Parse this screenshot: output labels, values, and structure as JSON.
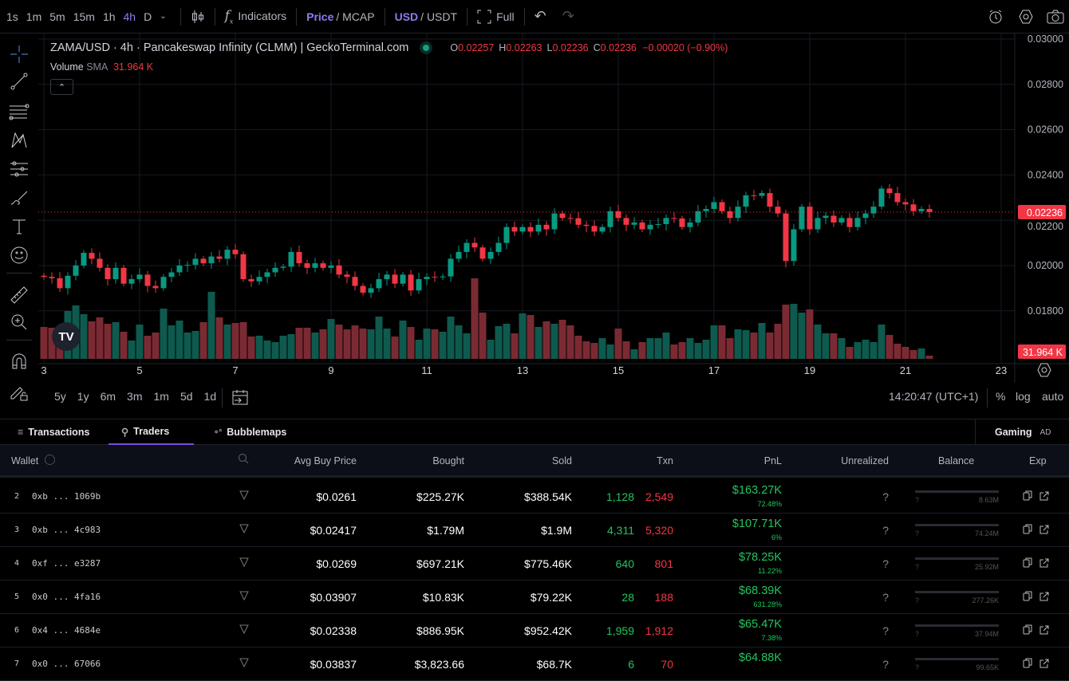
{
  "toolbar": {
    "timeframes": [
      "1s",
      "1m",
      "5m",
      "15m",
      "1h",
      "4h",
      "D"
    ],
    "active_timeframe": "4h",
    "indicators": "Indicators",
    "price": "Price",
    "mcap": "/ MCAP",
    "usd": "USD",
    "usdt": "/ USDT",
    "full": "Full",
    "slash": "/"
  },
  "legend": {
    "title": "ZAMA/USD · 4h · Pancakeswap Infinity (CLMM) | GeckoTerminal.com",
    "o_label": "O",
    "o": "0.02257",
    "h_label": "H",
    "h": "0.02263",
    "l_label": "L",
    "l": "0.02236",
    "c_label": "C",
    "c": "0.02236",
    "change": "−0.00020 (−0.90%)",
    "volume_label": "Volume",
    "sma_label": "SMA",
    "sma_value": "31.964 K"
  },
  "price_axis": {
    "labels": [
      "0.03000",
      "0.02800",
      "0.02600",
      "0.02400",
      "0.02200",
      "0.02000",
      "0.01800"
    ],
    "current_price": "0.02236",
    "volume_label": "31.964 K"
  },
  "time_axis": {
    "labels": [
      "3",
      "5",
      "7",
      "9",
      "11",
      "13",
      "15",
      "17",
      "19",
      "21",
      "23"
    ]
  },
  "ranges": [
    "5y",
    "1y",
    "6m",
    "3m",
    "1m",
    "5d",
    "1d"
  ],
  "status": {
    "time": "14:20:47 (UTC+1)",
    "pct": "%",
    "log": "log",
    "auto": "auto"
  },
  "chart_data": {
    "type": "candlestick",
    "title": "ZAMA/USD · 4h",
    "interval_hours": 4,
    "start_day": 3,
    "ylim": [
      0.0178,
      0.0302
    ],
    "colors": {
      "up": "#089981",
      "down": "#f23645",
      "vol_up": "#0e5a4e",
      "vol_down": "#7b2a33"
    },
    "close": [
      0.0195,
      0.01944,
      0.019,
      0.01955,
      0.02,
      0.02056,
      0.0203,
      0.0199,
      0.0194,
      0.0199,
      0.0192,
      0.0194,
      0.0196,
      0.0191,
      0.019,
      0.0195,
      0.0197,
      0.02,
      0.02003,
      0.0203,
      0.0201,
      0.0204,
      0.0203,
      0.0207,
      0.0205,
      0.0194,
      0.0193,
      0.0195,
      0.0197,
      0.0199,
      0.01995,
      0.0206,
      0.0201,
      0.0199,
      0.0201,
      0.0199,
      0.02,
      0.0196,
      0.0195,
      0.0191,
      0.0188,
      0.019,
      0.0194,
      0.0196,
      0.0192,
      0.0196,
      0.0189,
      0.0194,
      0.0195,
      0.01948,
      0.01952,
      0.0203,
      0.0206,
      0.021,
      0.0208,
      0.0203,
      0.0206,
      0.021,
      0.0217,
      0.0215,
      0.0217,
      0.0215,
      0.0218,
      0.0216,
      0.0223,
      0.0221,
      0.02209,
      0.0218,
      0.02175,
      0.0215,
      0.0217,
      0.0224,
      0.0221,
      0.0218,
      0.0219,
      0.0216,
      0.0218,
      0.02183,
      0.0221,
      0.02208,
      0.0217,
      0.0219,
      0.0224,
      0.0225,
      0.0228,
      0.0224,
      0.0221,
      0.0226,
      0.0231,
      0.02308,
      0.0232,
      0.0226,
      0.0223,
      0.0202,
      0.0216,
      0.0226,
      0.0216,
      0.0221,
      0.0222,
      0.0219,
      0.0221,
      0.0217,
      0.0221,
      0.0223,
      0.0226,
      0.0234,
      0.0232,
      0.0228,
      0.0227,
      0.0224,
      0.0225,
      0.02236
    ],
    "volume_k": [
      40,
      39,
      36,
      60,
      67,
      56,
      47,
      52,
      44,
      46,
      34,
      23,
      43,
      29,
      33,
      63,
      42,
      48,
      33,
      35,
      46,
      84,
      52,
      43,
      45,
      46,
      28,
      29,
      23,
      21,
      29,
      31,
      39,
      39,
      33,
      37,
      50,
      43,
      37,
      42,
      38,
      37,
      53,
      38,
      28,
      48,
      40,
      24,
      38,
      37,
      34,
      53,
      42,
      32,
      101,
      58,
      24,
      41,
      44,
      32,
      57,
      55,
      40,
      47,
      44,
      49,
      42,
      29,
      22,
      20,
      26,
      18,
      38,
      22,
      12,
      21,
      26,
      26,
      33,
      18,
      21,
      26,
      20,
      24,
      42,
      42,
      26,
      37,
      36,
      33,
      45,
      33,
      44,
      68,
      69,
      58,
      62,
      43,
      32,
      32,
      26,
      15,
      21,
      24,
      21,
      43,
      30,
      19,
      15,
      11,
      13,
      4
    ]
  },
  "tabs": [
    {
      "label": "Transactions"
    },
    {
      "label": "Traders"
    },
    {
      "label": "Bubblemaps"
    }
  ],
  "ad": {
    "label": "Gaming",
    "badge": "AD"
  },
  "table": {
    "headers": {
      "wallet": "Wallet",
      "avg": "Avg Buy Price",
      "bought": "Bought",
      "sold": "Sold",
      "txn": "Txn",
      "pnl": "PnL",
      "unrealized": "Unrealized",
      "balance": "Balance",
      "exp": "Exp"
    },
    "rows": [
      {
        "rank": "2",
        "wallet": "0xb ... 1069b",
        "avg": "$0.0261",
        "bought": "$225.27K",
        "sold": "$388.54K",
        "buys": "1,128",
        "sells": "2,549",
        "pnl": "$163.27K",
        "pnl_pct": "72.48%",
        "unrealized": "?",
        "bal_q": "?",
        "balance": "8.63M"
      },
      {
        "rank": "3",
        "wallet": "0xb ... 4c983",
        "avg": "$0.02417",
        "bought": "$1.79M",
        "sold": "$1.9M",
        "buys": "4,311",
        "sells": "5,320",
        "pnl": "$107.71K",
        "pnl_pct": "6%",
        "unrealized": "?",
        "bal_q": "?",
        "balance": "74.24M"
      },
      {
        "rank": "4",
        "wallet": "0xf ... e3287",
        "avg": "$0.0269",
        "bought": "$697.21K",
        "sold": "$775.46K",
        "buys": "640",
        "sells": "801",
        "pnl": "$78.25K",
        "pnl_pct": "11.22%",
        "unrealized": "?",
        "bal_q": "?",
        "balance": "25.92M"
      },
      {
        "rank": "5",
        "wallet": "0x0 ... 4fa16",
        "avg": "$0.03907",
        "bought": "$10.83K",
        "sold": "$79.22K",
        "buys": "28",
        "sells": "188",
        "pnl": "$68.39K",
        "pnl_pct": "631.28%",
        "unrealized": "?",
        "bal_q": "?",
        "balance": "277.26K"
      },
      {
        "rank": "6",
        "wallet": "0x4 ... 4684e",
        "avg": "$0.02338",
        "bought": "$886.95K",
        "sold": "$952.42K",
        "buys": "1,959",
        "sells": "1,912",
        "pnl": "$65.47K",
        "pnl_pct": "7.38%",
        "unrealized": "?",
        "bal_q": "?",
        "balance": "37.94M"
      },
      {
        "rank": "7",
        "wallet": "0x0 ... 67066",
        "avg": "$0.03837",
        "bought": "$3,823.66",
        "sold": "$68.7K",
        "buys": "6",
        "sells": "70",
        "pnl": "$64.88K",
        "pnl_pct": "",
        "unrealized": "?",
        "bal_q": "?",
        "balance": "99.65K"
      }
    ]
  }
}
